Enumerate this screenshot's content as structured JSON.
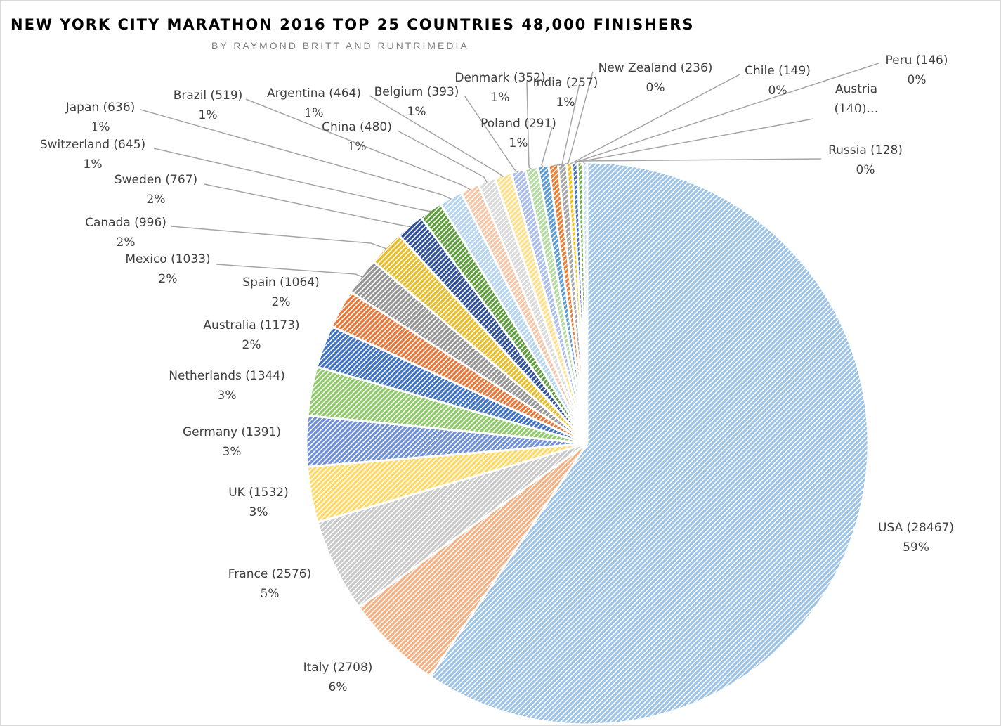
{
  "title": "NEW YORK CITY MARATHON 2016 TOP 25 COUNTRIES 48,000 FINISHERS",
  "subtitle": "BY RAYMOND BRITT AND RUNTRIMEDIA",
  "chart_data": {
    "type": "pie",
    "title": "NEW YORK CITY MARATHON 2016 TOP 25 COUNTRIES 48,000 FINISHERS",
    "subtitle": "BY RAYMOND BRITT AND RUNTRIMEDIA",
    "slices": [
      {
        "name": "USA",
        "value": 28467,
        "label": "USA (28467)",
        "pct": "59%",
        "color": "#9dc3e6"
      },
      {
        "name": "Italy",
        "value": 2708,
        "label": "Italy (2708)",
        "pct": "6%",
        "color": "#f4b183"
      },
      {
        "name": "France",
        "value": 2576,
        "label": "France (2576)",
        "pct": "5%",
        "color": "#c9c9c9"
      },
      {
        "name": "UK",
        "value": 1532,
        "label": "UK (1532)",
        "pct": "3%",
        "color": "#ffd966"
      },
      {
        "name": "Germany",
        "value": 1391,
        "label": "Germany (1391)",
        "pct": "3%",
        "color": "#6f8fd8"
      },
      {
        "name": "Netherlands",
        "value": 1344,
        "label": "Netherlands (1344)",
        "pct": "3%",
        "color": "#8fca6a"
      },
      {
        "name": "Australia",
        "value": 1173,
        "label": "Australia (1173)",
        "pct": "2%",
        "color": "#3f72c4"
      },
      {
        "name": "Spain",
        "value": 1064,
        "label": "Spain (1064)",
        "pct": "2%",
        "color": "#e8773a"
      },
      {
        "name": "Mexico",
        "value": 1033,
        "label": "Mexico (1033)",
        "pct": "2%",
        "color": "#959595"
      },
      {
        "name": "Canada",
        "value": 996,
        "label": "Canada (996)",
        "pct": "2%",
        "color": "#e8bd2a"
      },
      {
        "name": "Sweden",
        "value": 767,
        "label": "Sweden (767)",
        "pct": "2%",
        "color": "#30509a"
      },
      {
        "name": "Switzerland",
        "value": 645,
        "label": "Switzerland (645)",
        "pct": "1%",
        "color": "#5d9d3c"
      },
      {
        "name": "Japan",
        "value": 636,
        "label": "Japan (636)",
        "pct": "1%",
        "color": "#b4d4f0"
      },
      {
        "name": "Brazil",
        "value": 519,
        "label": "Brazil (519)",
        "pct": "1%",
        "color": "#f6c6a6"
      },
      {
        "name": "China",
        "value": 480,
        "label": "China (480)",
        "pct": "1%",
        "color": "#dadada"
      },
      {
        "name": "Argentina",
        "value": 464,
        "label": "Argentina (464)",
        "pct": "1%",
        "color": "#ffe08a"
      },
      {
        "name": "Belgium",
        "value": 393,
        "label": "Belgium (393)",
        "pct": "1%",
        "color": "#a9bcec"
      },
      {
        "name": "Denmark",
        "value": 352,
        "label": "Denmark (352)",
        "pct": "1%",
        "color": "#b3dba0"
      },
      {
        "name": "Poland",
        "value": 291,
        "label": "Poland (291)",
        "pct": "1%",
        "color": "#5b9bd5"
      },
      {
        "name": "India",
        "value": 257,
        "label": "India (257)",
        "pct": "1%",
        "color": "#ed7d31"
      },
      {
        "name": "New Zealand",
        "value": 236,
        "label": "New Zealand (236)",
        "pct": "0%",
        "color": "#a5a5a5"
      },
      {
        "name": "Chile",
        "value": 149,
        "label": "Chile (149)",
        "pct": "0%",
        "color": "#ffc000"
      },
      {
        "name": "Peru",
        "value": 146,
        "label": "Peru (146)",
        "pct": "0%",
        "color": "#4472c4"
      },
      {
        "name": "Austria",
        "value": 140,
        "label": "Austria",
        "pct": "(140)…",
        "color": "#70ad47"
      },
      {
        "name": "Russia",
        "value": 128,
        "label": "Russia (128)",
        "pct": "0%",
        "color": "#c5dcf2"
      }
    ]
  }
}
